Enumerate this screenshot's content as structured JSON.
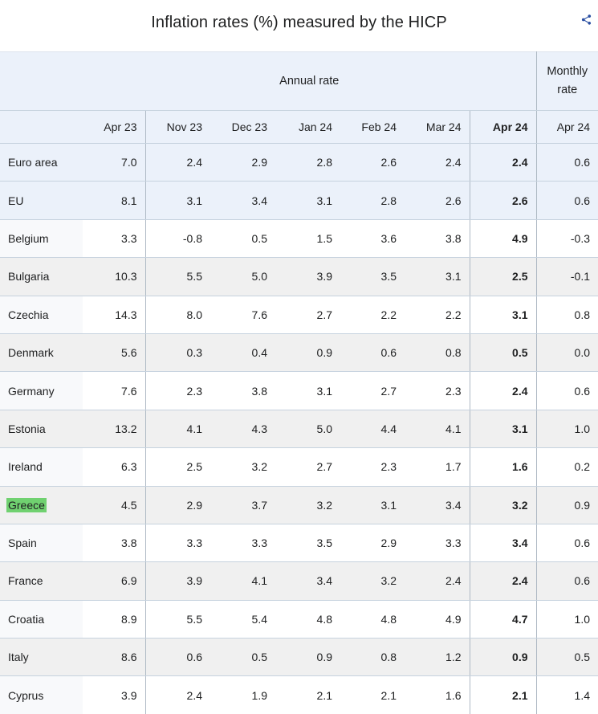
{
  "title": "Inflation rates (%) measured by the HICP",
  "header": {
    "share_icon": "share-icon"
  },
  "table": {
    "annual_header": "Annual rate",
    "monthly_header": "Monthly rate",
    "columns": [
      "Apr 23",
      "Nov 23",
      "Dec 23",
      "Jan 24",
      "Feb 24",
      "Mar 24",
      "Apr 24",
      "Apr 24"
    ],
    "bold_column_index": 6,
    "rows": [
      {
        "name": "Euro area",
        "variant": "aggregate",
        "highlight": false,
        "values": [
          "7.0",
          "2.4",
          "2.9",
          "2.8",
          "2.6",
          "2.4",
          "2.4",
          "0.6"
        ]
      },
      {
        "name": "EU",
        "variant": "aggregate",
        "highlight": false,
        "values": [
          "8.1",
          "3.1",
          "3.4",
          "3.1",
          "2.8",
          "2.6",
          "2.6",
          "0.6"
        ]
      },
      {
        "name": "Belgium",
        "variant": "plain",
        "highlight": false,
        "values": [
          "3.3",
          "-0.8",
          "0.5",
          "1.5",
          "3.6",
          "3.8",
          "4.9",
          "-0.3"
        ]
      },
      {
        "name": "Bulgaria",
        "variant": "striped",
        "highlight": false,
        "values": [
          "10.3",
          "5.5",
          "5.0",
          "3.9",
          "3.5",
          "3.1",
          "2.5",
          "-0.1"
        ]
      },
      {
        "name": "Czechia",
        "variant": "plain",
        "highlight": false,
        "values": [
          "14.3",
          "8.0",
          "7.6",
          "2.7",
          "2.2",
          "2.2",
          "3.1",
          "0.8"
        ]
      },
      {
        "name": "Denmark",
        "variant": "striped",
        "highlight": false,
        "values": [
          "5.6",
          "0.3",
          "0.4",
          "0.9",
          "0.6",
          "0.8",
          "0.5",
          "0.0"
        ]
      },
      {
        "name": "Germany",
        "variant": "plain",
        "highlight": false,
        "values": [
          "7.6",
          "2.3",
          "3.8",
          "3.1",
          "2.7",
          "2.3",
          "2.4",
          "0.6"
        ]
      },
      {
        "name": "Estonia",
        "variant": "striped",
        "highlight": false,
        "values": [
          "13.2",
          "4.1",
          "4.3",
          "5.0",
          "4.4",
          "4.1",
          "3.1",
          "1.0"
        ]
      },
      {
        "name": "Ireland",
        "variant": "plain",
        "highlight": false,
        "values": [
          "6.3",
          "2.5",
          "3.2",
          "2.7",
          "2.3",
          "1.7",
          "1.6",
          "0.2"
        ]
      },
      {
        "name": "Greece",
        "variant": "striped",
        "highlight": true,
        "values": [
          "4.5",
          "2.9",
          "3.7",
          "3.2",
          "3.1",
          "3.4",
          "3.2",
          "0.9"
        ]
      },
      {
        "name": "Spain",
        "variant": "plain",
        "highlight": false,
        "values": [
          "3.8",
          "3.3",
          "3.3",
          "3.5",
          "2.9",
          "3.3",
          "3.4",
          "0.6"
        ]
      },
      {
        "name": "France",
        "variant": "striped",
        "highlight": false,
        "values": [
          "6.9",
          "3.9",
          "4.1",
          "3.4",
          "3.2",
          "2.4",
          "2.4",
          "0.6"
        ]
      },
      {
        "name": "Croatia",
        "variant": "plain",
        "highlight": false,
        "values": [
          "8.9",
          "5.5",
          "5.4",
          "4.8",
          "4.8",
          "4.9",
          "4.7",
          "1.0"
        ]
      },
      {
        "name": "Italy",
        "variant": "striped",
        "highlight": false,
        "values": [
          "8.6",
          "0.6",
          "0.5",
          "0.9",
          "0.8",
          "1.2",
          "0.9",
          "0.5"
        ]
      },
      {
        "name": "Cyprus",
        "variant": "plain",
        "highlight": false,
        "values": [
          "3.9",
          "2.4",
          "1.9",
          "2.1",
          "2.1",
          "1.6",
          "2.1",
          "1.4"
        ]
      }
    ]
  },
  "colors": {
    "aggregate_row_bg": "#ebf1fa",
    "striped_row_bg": "#f0f0f0",
    "name_cell_bg": "#f8f9fb",
    "header_bg": "#ebf1fa",
    "row_border": "#c6d2de",
    "column_border": "#aeb9c4",
    "highlight_green": "#70d170",
    "share_blue": "#2a4fa2",
    "text": "#202122"
  }
}
